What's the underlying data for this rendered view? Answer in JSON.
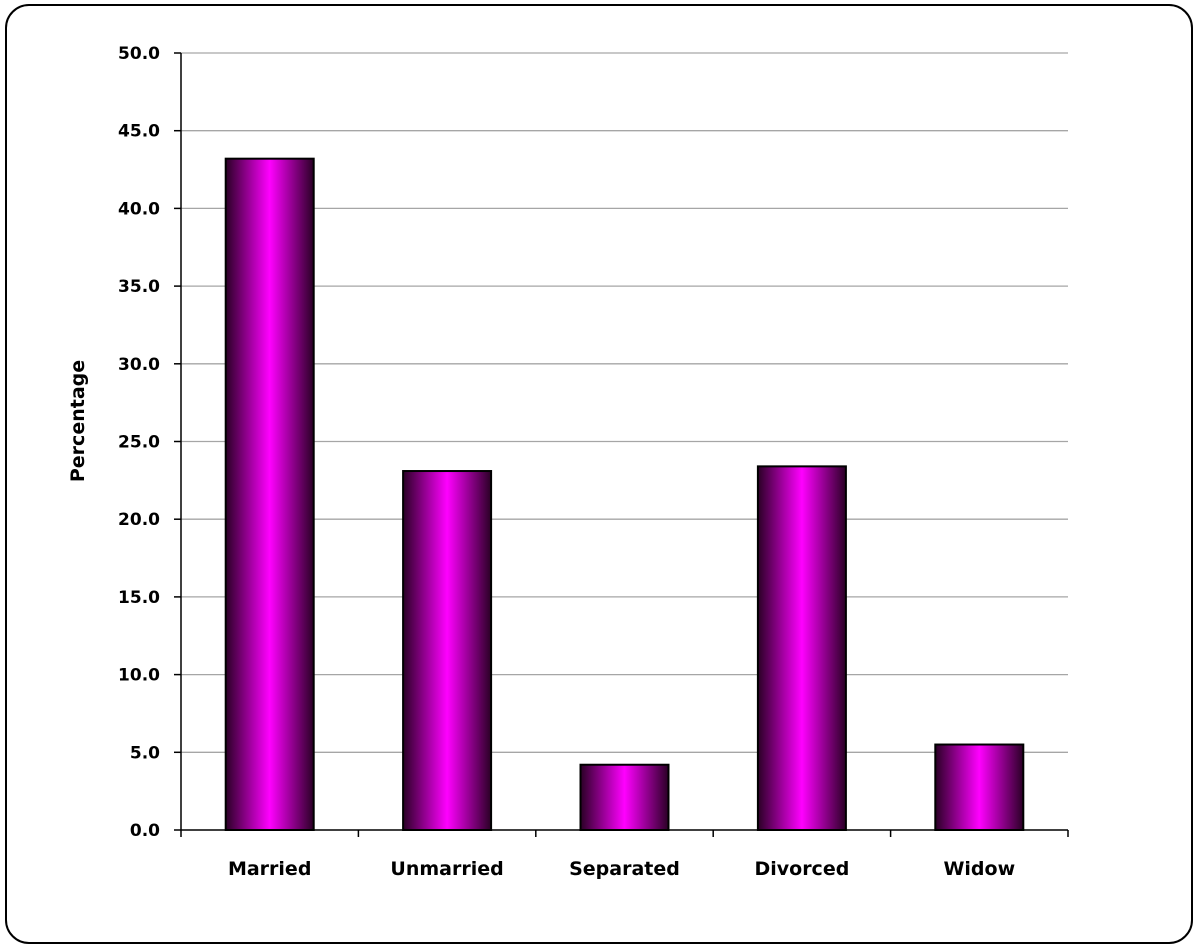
{
  "chart_data": {
    "type": "bar",
    "title": "",
    "xlabel": "",
    "ylabel": "Percentage",
    "categories": [
      "Married",
      "Unmarried",
      "Separated",
      "Divorced",
      "Widow"
    ],
    "values": [
      43.2,
      23.1,
      4.2,
      23.4,
      5.5
    ],
    "ylim": [
      0,
      50
    ],
    "yticks": [
      "0.0",
      "5.0",
      "10.0",
      "15.0",
      "20.0",
      "25.0",
      "30.0",
      "35.0",
      "40.0",
      "45.0",
      "50.0"
    ],
    "grid": true,
    "legend": "none",
    "colors": {
      "bar_center": "#ff00ff",
      "bar_edge": "#2a0025",
      "gridline": "#a6a6a6",
      "axis": "#000000"
    }
  }
}
